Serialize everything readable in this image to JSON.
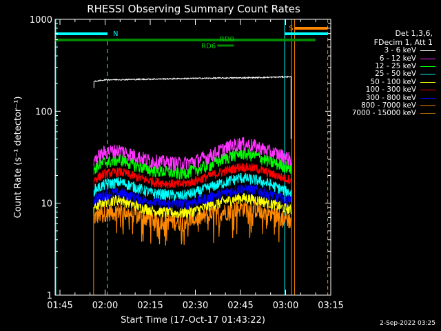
{
  "chart_data": {
    "type": "line",
    "title": "RHESSI Observing Summary Count Rates",
    "xlabel": "Start Time (17-Oct-17 01:43:22)",
    "ylabel": "Count Rate (s⁻¹ detector⁻¹)",
    "yscale": "log",
    "ylim": [
      1,
      1000
    ],
    "xlim_min": [
      103.4,
      195.0
    ],
    "x_ticks": [
      {
        "m": 105,
        "label": "01:45"
      },
      {
        "m": 120,
        "label": "02:00"
      },
      {
        "m": 135,
        "label": "02:15"
      },
      {
        "m": 150,
        "label": "02:30"
      },
      {
        "m": 165,
        "label": "02:45"
      },
      {
        "m": 180,
        "label": "03:00"
      },
      {
        "m": 195,
        "label": "03:15"
      }
    ],
    "y_ticks": [
      {
        "v": 1,
        "label": "1"
      },
      {
        "v": 10,
        "label": "10"
      },
      {
        "v": 100,
        "label": "100"
      },
      {
        "v": 1000,
        "label": "1000"
      }
    ],
    "legend_title": [
      "Det 1,3,6,",
      "FDecim 1, Att 1"
    ],
    "legend_placement": "right",
    "series": [
      {
        "name": "3 - 6 keV",
        "color": "#ffffff",
        "values": [
          [
            116.3,
            210
          ],
          [
            120,
            220
          ],
          [
            130,
            222
          ],
          [
            140,
            225
          ],
          [
            150,
            228
          ],
          [
            160,
            230
          ],
          [
            170,
            232
          ],
          [
            177,
            235
          ],
          [
            181.8,
            238
          ]
        ]
      },
      {
        "name": "6 - 12 keV",
        "color": "#ff33ff",
        "values": [
          [
            116.3,
            30
          ],
          [
            120,
            36
          ],
          [
            125,
            38
          ],
          [
            130,
            33
          ],
          [
            135,
            29
          ],
          [
            140,
            28
          ],
          [
            145,
            27
          ],
          [
            150,
            29
          ],
          [
            155,
            33
          ],
          [
            160,
            40
          ],
          [
            165,
            45
          ],
          [
            170,
            42
          ],
          [
            175,
            36
          ],
          [
            179,
            33
          ],
          [
            181.8,
            30
          ]
        ]
      },
      {
        "name": "12 - 25 keV",
        "color": "#00ff00",
        "values": [
          [
            116.3,
            24
          ],
          [
            120,
            28
          ],
          [
            125,
            30
          ],
          [
            130,
            26
          ],
          [
            135,
            23
          ],
          [
            140,
            22
          ],
          [
            145,
            21
          ],
          [
            150,
            23
          ],
          [
            155,
            26
          ],
          [
            160,
            31
          ],
          [
            165,
            35
          ],
          [
            170,
            33
          ],
          [
            175,
            28
          ],
          [
            179,
            26
          ],
          [
            181.8,
            24
          ]
        ]
      },
      {
        "name": "25 - 50 keV",
        "color": "#00ffff",
        "values": [
          [
            116.3,
            14
          ],
          [
            120,
            16
          ],
          [
            125,
            17
          ],
          [
            130,
            15
          ],
          [
            135,
            13
          ],
          [
            140,
            12.5
          ],
          [
            145,
            12
          ],
          [
            150,
            13
          ],
          [
            155,
            15
          ],
          [
            160,
            17
          ],
          [
            165,
            19
          ],
          [
            170,
            18
          ],
          [
            175,
            16
          ],
          [
            179,
            14
          ],
          [
            181.8,
            13
          ]
        ]
      },
      {
        "name": "50 - 100 keV",
        "color": "#ffff00",
        "values": [
          [
            116.3,
            9
          ],
          [
            120,
            10.5
          ],
          [
            125,
            11
          ],
          [
            130,
            9.5
          ],
          [
            135,
            8.5
          ],
          [
            140,
            8
          ],
          [
            145,
            7.8
          ],
          [
            150,
            8.3
          ],
          [
            155,
            9.5
          ],
          [
            160,
            10.5
          ],
          [
            165,
            11.5
          ],
          [
            170,
            11
          ],
          [
            175,
            10
          ],
          [
            179,
            9
          ],
          [
            181.8,
            8.5
          ]
        ]
      },
      {
        "name": "100 - 300 keV",
        "color": "#ff0000",
        "values": [
          [
            116.3,
            18
          ],
          [
            120,
            21
          ],
          [
            125,
            22
          ],
          [
            130,
            19.5
          ],
          [
            135,
            17.5
          ],
          [
            140,
            16.5
          ],
          [
            145,
            16
          ],
          [
            150,
            17.5
          ],
          [
            155,
            20
          ],
          [
            160,
            22.5
          ],
          [
            165,
            25
          ],
          [
            170,
            24
          ],
          [
            175,
            21
          ],
          [
            179,
            19
          ],
          [
            181.8,
            18
          ]
        ]
      },
      {
        "name": "300 - 800 keV",
        "color": "#0000ff",
        "values": [
          [
            116.3,
            11
          ],
          [
            120,
            12.5
          ],
          [
            125,
            13
          ],
          [
            130,
            11.5
          ],
          [
            135,
            10.5
          ],
          [
            140,
            10
          ],
          [
            145,
            9.7
          ],
          [
            150,
            10.4
          ],
          [
            155,
            11.7
          ],
          [
            160,
            13
          ],
          [
            165,
            14.5
          ],
          [
            170,
            14
          ],
          [
            175,
            12.3
          ],
          [
            179,
            11.2
          ],
          [
            181.8,
            10.5
          ]
        ]
      },
      {
        "name": "800 - 7000 keV",
        "color": "#ff8800",
        "values": [
          [
            116.3,
            7
          ],
          [
            120,
            8
          ],
          [
            125,
            8.3
          ],
          [
            130,
            7.5
          ],
          [
            135,
            6.8
          ],
          [
            140,
            6.5
          ],
          [
            145,
            6.3
          ],
          [
            150,
            6.8
          ],
          [
            155,
            7.5
          ],
          [
            160,
            8.3
          ],
          [
            165,
            9
          ],
          [
            170,
            8.7
          ],
          [
            175,
            7.8
          ],
          [
            179,
            7.1
          ],
          [
            181.8,
            6.5
          ]
        ]
      },
      {
        "name": "7000 - 15000 keV",
        "color": "#aa6600",
        "values": []
      }
    ],
    "annotations": {
      "saa_label": "N",
      "flare_label": "S",
      "rd0_label": "RD0",
      "rd6_label": "RD6"
    }
  },
  "footer_date": "2-Sep-2022 03:25"
}
